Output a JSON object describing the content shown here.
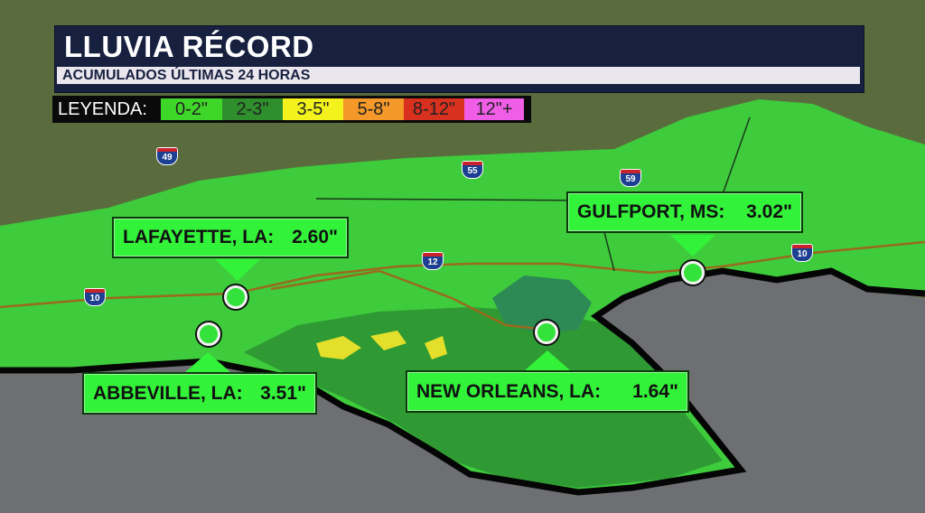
{
  "header": {
    "title": "LLUVIA RÉCORD",
    "subtitle": "ACUMULADOS ÚLTIMAS 24 HORAS"
  },
  "legend": {
    "label": "LEYENDA:",
    "items": [
      {
        "label": "0-2\"",
        "color": "#3fd62a"
      },
      {
        "label": "2-3\"",
        "color": "#2e8f2c"
      },
      {
        "label": "3-5\"",
        "color": "#f3f21c"
      },
      {
        "label": "5-8\"",
        "color": "#f5982a"
      },
      {
        "label": "8-12\"",
        "color": "#d8311f"
      },
      {
        "label": "12\"+",
        "color": "#f05ee8"
      }
    ]
  },
  "highways": [
    "49",
    "55",
    "59",
    "10",
    "12",
    "10"
  ],
  "locations": [
    {
      "city": "LAFAYETTE, LA:",
      "value": "2.60\""
    },
    {
      "city": "ABBEVILLE, LA:",
      "value": "3.51\""
    },
    {
      "city": "NEW ORLEANS, LA:",
      "value": "1.64\""
    },
    {
      "city": "GULFPORT, MS:",
      "value": "3.02\""
    }
  ],
  "colors": {
    "callout": "#33f23a",
    "title_bg": "#17213f",
    "water": "#6e6f73",
    "land": "#55683a"
  }
}
